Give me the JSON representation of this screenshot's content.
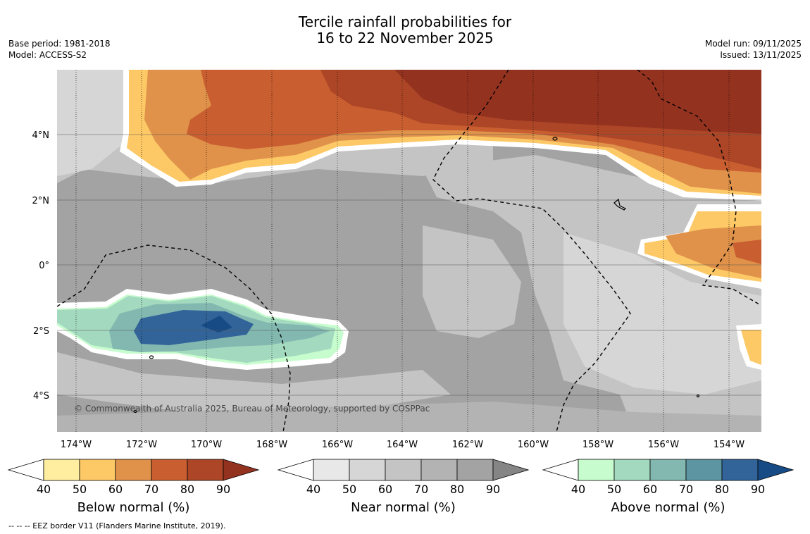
{
  "title": {
    "line1": "Tercile rainfall probabilities for",
    "line2": "16 to 22 November 2025"
  },
  "meta_left": {
    "base_period": "Base period: 1981-2018",
    "model": "Model: ACCESS-S2"
  },
  "meta_right": {
    "model_run": "Model run: 09/11/2025",
    "issued": "Issued: 13/11/2025"
  },
  "map": {
    "lon_labels": [
      "174°W",
      "172°W",
      "170°W",
      "168°W",
      "166°W",
      "164°W",
      "162°W",
      "160°W",
      "158°W",
      "156°W",
      "154°W"
    ],
    "lat_labels": [
      "4°N",
      "2°N",
      "0°",
      "2°S",
      "4°S"
    ],
    "copyright": "© Commonwealth of Australia 2025, Bureau of Meteorology, supported by COSPPac"
  },
  "colorbars": [
    {
      "title": "Below normal (%)",
      "ticks": [
        "40",
        "50",
        "60",
        "70",
        "80",
        "90"
      ],
      "colors": [
        "#ffeda0",
        "#fdc966",
        "#e0924a",
        "#c95f30",
        "#ac4627",
        "#943220"
      ]
    },
    {
      "title": "Near normal (%)",
      "ticks": [
        "40",
        "50",
        "60",
        "70",
        "80",
        "90"
      ],
      "colors": [
        "#e8e8e8",
        "#d6d6d6",
        "#c4c4c4",
        "#b3b3b3",
        "#a3a3a3",
        "#858585"
      ]
    },
    {
      "title": "Above normal (%)",
      "ticks": [
        "40",
        "50",
        "60",
        "70",
        "80",
        "90"
      ],
      "colors": [
        "#c7fcce",
        "#a3d9bf",
        "#82b8b0",
        "#5d96a2",
        "#326499",
        "#174b85"
      ]
    }
  ],
  "footer": "--  --  -- EEZ border V11 (Flanders Marine Institute, 2019)."
}
